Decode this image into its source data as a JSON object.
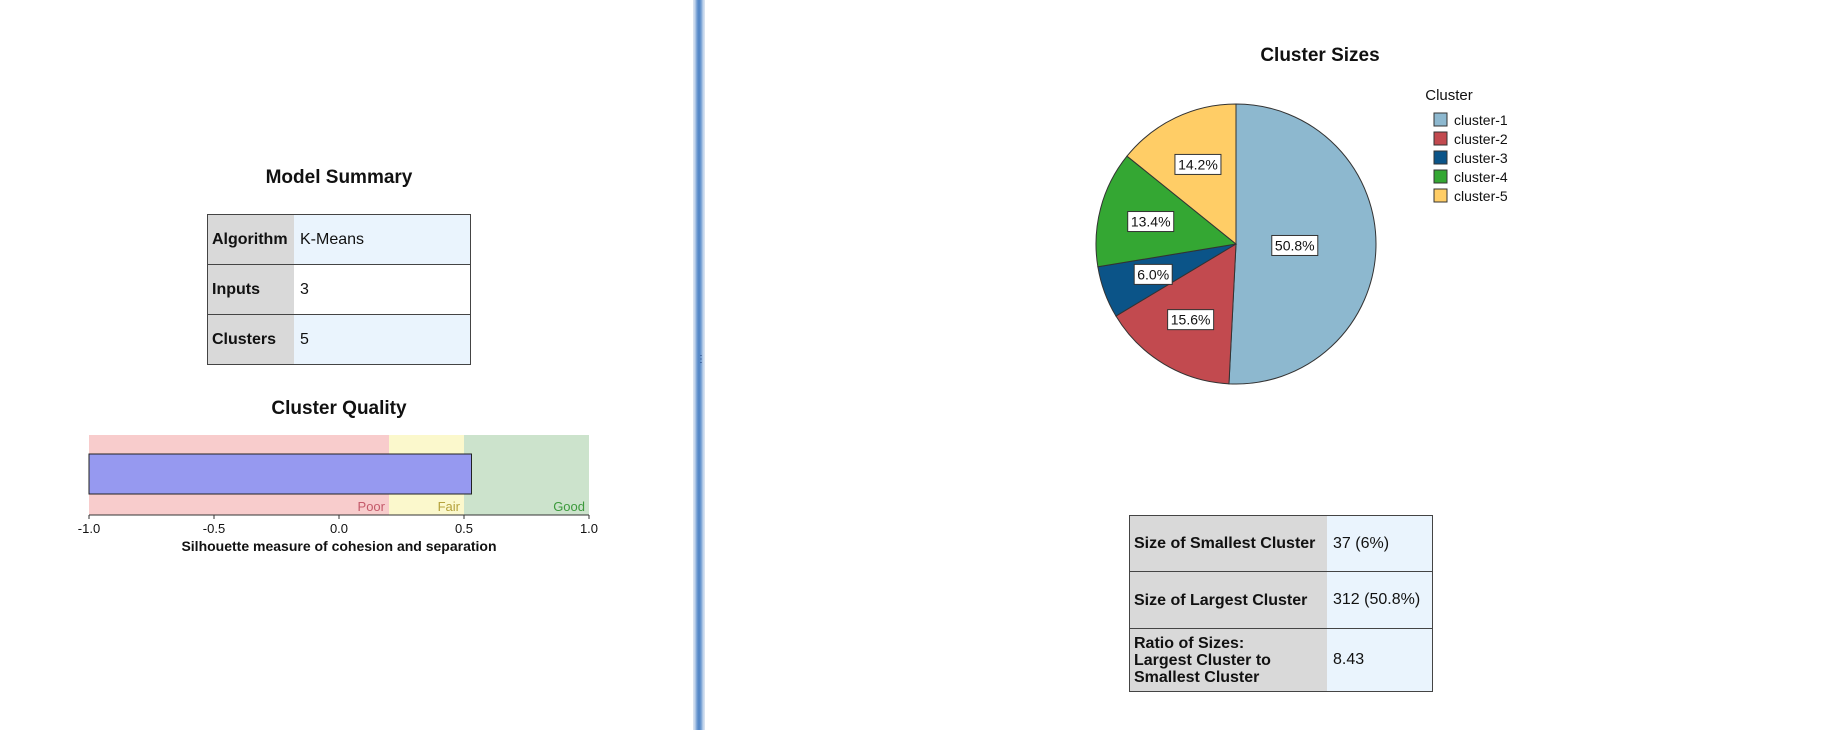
{
  "model_summary": {
    "title": "Model Summary",
    "rows": [
      {
        "label": "Algorithm",
        "value": "K-Means"
      },
      {
        "label": "Inputs",
        "value": "3"
      },
      {
        "label": "Clusters",
        "value": "5"
      }
    ]
  },
  "cluster_quality": {
    "title": "Cluster Quality",
    "xlabel": "Silhouette measure of cohesion and separation",
    "ticks": [
      "-1.0",
      "-0.5",
      "0.0",
      "0.5",
      "1.0"
    ],
    "zones": [
      {
        "label": "Poor",
        "from": -1.0,
        "to": 0.2,
        "color": "#f8cccc",
        "text_color": "#c45a6a"
      },
      {
        "label": "Fair",
        "from": 0.2,
        "to": 0.5,
        "color": "#fbf8cc",
        "text_color": "#b5a23c"
      },
      {
        "label": "Good",
        "from": 0.5,
        "to": 1.0,
        "color": "#cce3cc",
        "text_color": "#3c9a3c"
      }
    ],
    "value": 0.53,
    "bar_color": "#9699f0"
  },
  "chart_data": {
    "type": "pie",
    "title": "Cluster Sizes",
    "legend_title": "Cluster",
    "legend_position": "right",
    "slices": [
      {
        "name": "cluster-1",
        "percent": 50.8,
        "label": "50.8%",
        "color": "#8db8cf"
      },
      {
        "name": "cluster-2",
        "percent": 15.6,
        "label": "15.6%",
        "color": "#c24a4f"
      },
      {
        "name": "cluster-3",
        "percent": 6.0,
        "label": "6.0%",
        "color": "#0b5488"
      },
      {
        "name": "cluster-4",
        "percent": 13.4,
        "label": "13.4%",
        "color": "#34a733"
      },
      {
        "name": "cluster-5",
        "percent": 14.2,
        "label": "14.2%",
        "color": "#ffcd66"
      }
    ]
  },
  "size_summary": {
    "rows": [
      {
        "label": [
          "Size of Smallest Cluster"
        ],
        "value": "37 (6%)"
      },
      {
        "label": [
          "Size of Largest Cluster"
        ],
        "value": "312 (50.8%)"
      },
      {
        "label": [
          "Ratio of Sizes:",
          "Largest Cluster to",
          "Smallest Cluster"
        ],
        "value": "8.43"
      }
    ]
  },
  "splitter": {
    "grip": "⋮"
  }
}
